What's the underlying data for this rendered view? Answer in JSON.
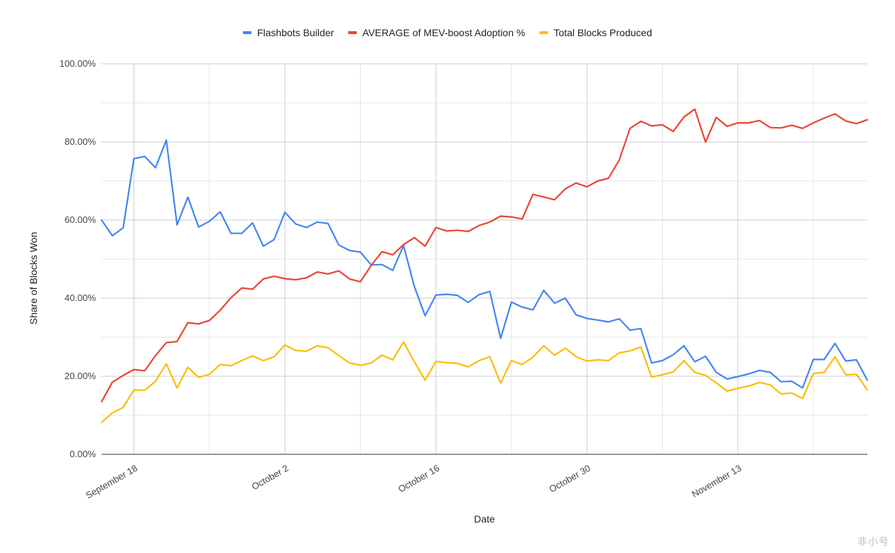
{
  "chart_data": {
    "type": "line",
    "title": "",
    "xlabel": "Date",
    "ylabel": "Share of Blocks Won",
    "ylim": [
      0,
      1
    ],
    "y_ticks": [
      "0.00%",
      "20.00%",
      "40.00%",
      "60.00%",
      "80.00%",
      "100.00%"
    ],
    "x_tick_labels": [
      "September 18",
      "October 2",
      "October 16",
      "October 30",
      "November 13"
    ],
    "x_start": "2022-09-15",
    "grid": true,
    "legend_position": "top",
    "series": [
      {
        "name": "Flashbots Builder",
        "color": "#4285f4",
        "values": [
          0.6,
          0.56,
          0.58,
          0.757,
          0.763,
          0.734,
          0.805,
          0.588,
          0.659,
          0.582,
          0.597,
          0.621,
          0.566,
          0.566,
          0.593,
          0.533,
          0.55,
          0.62,
          0.59,
          0.581,
          0.595,
          0.591,
          0.536,
          0.522,
          0.518,
          0.485,
          0.486,
          0.471,
          0.535,
          0.43,
          0.355,
          0.408,
          0.41,
          0.407,
          0.389,
          0.409,
          0.417,
          0.297,
          0.39,
          0.377,
          0.37,
          0.42,
          0.387,
          0.4,
          0.357,
          0.348,
          0.344,
          0.339,
          0.347,
          0.318,
          0.322,
          0.234,
          0.24,
          0.255,
          0.278,
          0.237,
          0.251,
          0.21,
          0.193,
          0.199,
          0.206,
          0.215,
          0.21,
          0.186,
          0.187,
          0.17,
          0.243,
          0.243,
          0.284,
          0.239,
          0.242,
          0.19
        ]
      },
      {
        "name": "AVERAGE of MEV-boost Adoption %",
        "color": "#ea4335",
        "values": [
          0.135,
          0.185,
          0.202,
          0.217,
          0.214,
          0.253,
          0.286,
          0.289,
          0.337,
          0.334,
          0.343,
          0.369,
          0.401,
          0.426,
          0.423,
          0.449,
          0.456,
          0.45,
          0.447,
          0.452,
          0.467,
          0.462,
          0.47,
          0.449,
          0.442,
          0.484,
          0.519,
          0.511,
          0.537,
          0.555,
          0.533,
          0.581,
          0.572,
          0.574,
          0.571,
          0.586,
          0.595,
          0.61,
          0.608,
          0.603,
          0.666,
          0.659,
          0.652,
          0.68,
          0.695,
          0.685,
          0.7,
          0.707,
          0.754,
          0.835,
          0.853,
          0.841,
          0.844,
          0.827,
          0.864,
          0.884,
          0.8,
          0.863,
          0.84,
          0.849,
          0.849,
          0.855,
          0.837,
          0.836,
          0.843,
          0.835,
          0.849,
          0.861,
          0.872,
          0.854,
          0.847,
          0.857
        ]
      },
      {
        "name": "Total Blocks Produced",
        "color": "#fbbc04",
        "values": [
          0.082,
          0.106,
          0.12,
          0.165,
          0.164,
          0.187,
          0.232,
          0.17,
          0.223,
          0.197,
          0.205,
          0.23,
          0.227,
          0.24,
          0.252,
          0.24,
          0.25,
          0.28,
          0.266,
          0.264,
          0.278,
          0.273,
          0.253,
          0.234,
          0.228,
          0.234,
          0.254,
          0.242,
          0.288,
          0.237,
          0.19,
          0.238,
          0.235,
          0.233,
          0.224,
          0.24,
          0.25,
          0.182,
          0.24,
          0.23,
          0.249,
          0.278,
          0.254,
          0.272,
          0.25,
          0.239,
          0.242,
          0.24,
          0.26,
          0.265,
          0.275,
          0.198,
          0.204,
          0.211,
          0.24,
          0.21,
          0.202,
          0.183,
          0.162,
          0.169,
          0.175,
          0.184,
          0.178,
          0.155,
          0.157,
          0.143,
          0.207,
          0.21,
          0.25,
          0.204,
          0.205,
          0.165
        ]
      }
    ]
  },
  "watermark": "非小号"
}
